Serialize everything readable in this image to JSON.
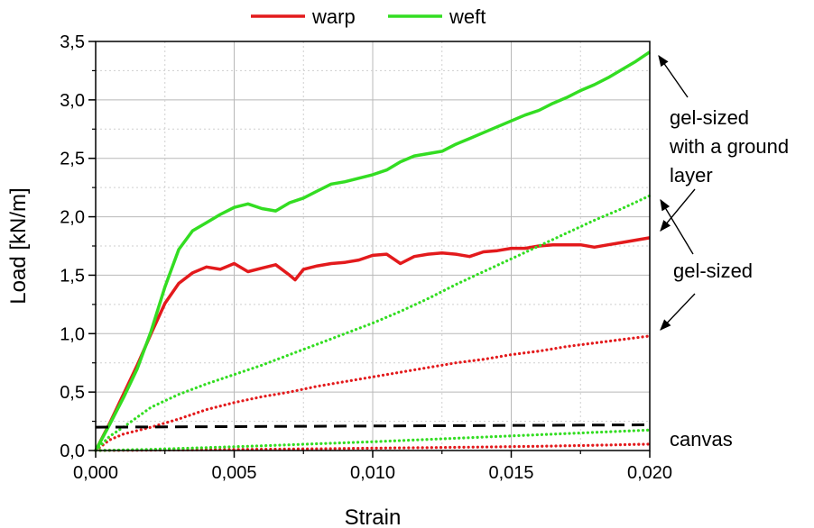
{
  "chart_data": {
    "type": "line",
    "xlabel": "Strain",
    "ylabel": "Load [kN/m]",
    "xlim": [
      0,
      0.02
    ],
    "ylim": [
      0,
      3.5
    ],
    "x_ticks": [
      "0,000",
      "0,005",
      "0,010",
      "0,015",
      "0,020"
    ],
    "y_ticks": [
      "0,0",
      "0,5",
      "1,0",
      "1,5",
      "2,0",
      "2,5",
      "3,0",
      "3,5"
    ],
    "grid": true,
    "legend": {
      "placement": "top-center",
      "entries": [
        {
          "label": "warp",
          "color": "#e31a1c"
        },
        {
          "label": "weft",
          "color": "#33dd22"
        }
      ]
    },
    "series": [
      {
        "group": "gel-sized with a ground layer",
        "legend": "warp",
        "color": "#e31a1c",
        "style": "solid",
        "x": [
          0,
          0.0005,
          0.001,
          0.0015,
          0.002,
          0.0025,
          0.003,
          0.0035,
          0.004,
          0.0045,
          0.005,
          0.0055,
          0.006,
          0.0065,
          0.007,
          0.0072,
          0.0075,
          0.008,
          0.0085,
          0.009,
          0.0095,
          0.01,
          0.0105,
          0.011,
          0.0115,
          0.012,
          0.0125,
          0.013,
          0.0135,
          0.014,
          0.0145,
          0.015,
          0.0155,
          0.016,
          0.0165,
          0.017,
          0.0175,
          0.018,
          0.0185,
          0.019,
          0.0195,
          0.02
        ],
        "y": [
          0,
          0.23,
          0.48,
          0.73,
          1.0,
          1.26,
          1.43,
          1.52,
          1.57,
          1.55,
          1.6,
          1.53,
          1.56,
          1.59,
          1.5,
          1.46,
          1.55,
          1.58,
          1.6,
          1.61,
          1.63,
          1.67,
          1.68,
          1.6,
          1.66,
          1.68,
          1.69,
          1.68,
          1.66,
          1.7,
          1.71,
          1.73,
          1.73,
          1.75,
          1.76,
          1.76,
          1.76,
          1.74,
          1.76,
          1.78,
          1.8,
          1.82
        ]
      },
      {
        "group": "gel-sized with a ground layer",
        "legend": "weft",
        "color": "#33dd22",
        "style": "solid",
        "x": [
          0,
          0.0005,
          0.001,
          0.0015,
          0.002,
          0.0025,
          0.003,
          0.0035,
          0.004,
          0.0045,
          0.005,
          0.0055,
          0.006,
          0.0065,
          0.007,
          0.0075,
          0.008,
          0.0085,
          0.009,
          0.0095,
          0.01,
          0.0105,
          0.011,
          0.0115,
          0.012,
          0.0125,
          0.013,
          0.0135,
          0.014,
          0.0145,
          0.015,
          0.0155,
          0.016,
          0.0165,
          0.017,
          0.0175,
          0.018,
          0.0185,
          0.019,
          0.0195,
          0.02
        ],
        "y": [
          0,
          0.22,
          0.45,
          0.7,
          1.02,
          1.4,
          1.72,
          1.88,
          1.95,
          2.02,
          2.08,
          2.11,
          2.07,
          2.05,
          2.12,
          2.16,
          2.22,
          2.28,
          2.3,
          2.33,
          2.36,
          2.4,
          2.47,
          2.52,
          2.54,
          2.56,
          2.62,
          2.67,
          2.72,
          2.77,
          2.82,
          2.87,
          2.91,
          2.97,
          3.02,
          3.08,
          3.13,
          3.19,
          3.26,
          3.33,
          3.41
        ]
      },
      {
        "group": "gel-sized",
        "legend": "warp",
        "color": "#e31a1c",
        "style": "dotted",
        "x": [
          0,
          0.0005,
          0.001,
          0.002,
          0.003,
          0.004,
          0.005,
          0.006,
          0.007,
          0.008,
          0.009,
          0.01,
          0.011,
          0.012,
          0.013,
          0.014,
          0.015,
          0.016,
          0.017,
          0.018,
          0.019,
          0.02
        ],
        "y": [
          0,
          0.09,
          0.14,
          0.2,
          0.27,
          0.35,
          0.41,
          0.46,
          0.5,
          0.55,
          0.59,
          0.63,
          0.67,
          0.71,
          0.75,
          0.78,
          0.82,
          0.85,
          0.89,
          0.92,
          0.95,
          0.98
        ]
      },
      {
        "group": "gel-sized",
        "legend": "weft",
        "color": "#33dd22",
        "style": "dotted",
        "x": [
          0,
          0.0005,
          0.001,
          0.002,
          0.003,
          0.004,
          0.005,
          0.006,
          0.007,
          0.008,
          0.009,
          0.01,
          0.011,
          0.012,
          0.013,
          0.014,
          0.015,
          0.016,
          0.017,
          0.018,
          0.019,
          0.02
        ],
        "y": [
          0,
          0.12,
          0.2,
          0.37,
          0.48,
          0.57,
          0.65,
          0.73,
          0.82,
          0.91,
          1.0,
          1.09,
          1.19,
          1.3,
          1.42,
          1.53,
          1.64,
          1.75,
          1.86,
          1.97,
          2.07,
          2.18
        ]
      },
      {
        "group": "canvas",
        "legend": "warp",
        "color": "#e31a1c",
        "style": "dotted",
        "x": [
          0,
          0.002,
          0.004,
          0.006,
          0.008,
          0.01,
          0.012,
          0.014,
          0.016,
          0.018,
          0.02
        ],
        "y": [
          0,
          0.003,
          0.007,
          0.011,
          0.015,
          0.02,
          0.025,
          0.03,
          0.036,
          0.045,
          0.055
        ]
      },
      {
        "group": "canvas",
        "legend": "weft",
        "color": "#33dd22",
        "style": "dotted",
        "x": [
          0,
          0.002,
          0.004,
          0.006,
          0.008,
          0.01,
          0.012,
          0.014,
          0.016,
          0.018,
          0.02
        ],
        "y": [
          0,
          0.01,
          0.025,
          0.04,
          0.058,
          0.075,
          0.095,
          0.115,
          0.135,
          0.155,
          0.175
        ]
      },
      {
        "group": "reference",
        "color": "#000000",
        "style": "dashed",
        "x": [
          0,
          0.02
        ],
        "y": [
          0.2,
          0.22
        ]
      }
    ],
    "annotations": [
      {
        "lines": [
          "gel-sized",
          "with a ground",
          "layer"
        ]
      },
      {
        "lines": [
          "gel-sized"
        ]
      },
      {
        "lines": [
          "canvas"
        ]
      }
    ]
  }
}
